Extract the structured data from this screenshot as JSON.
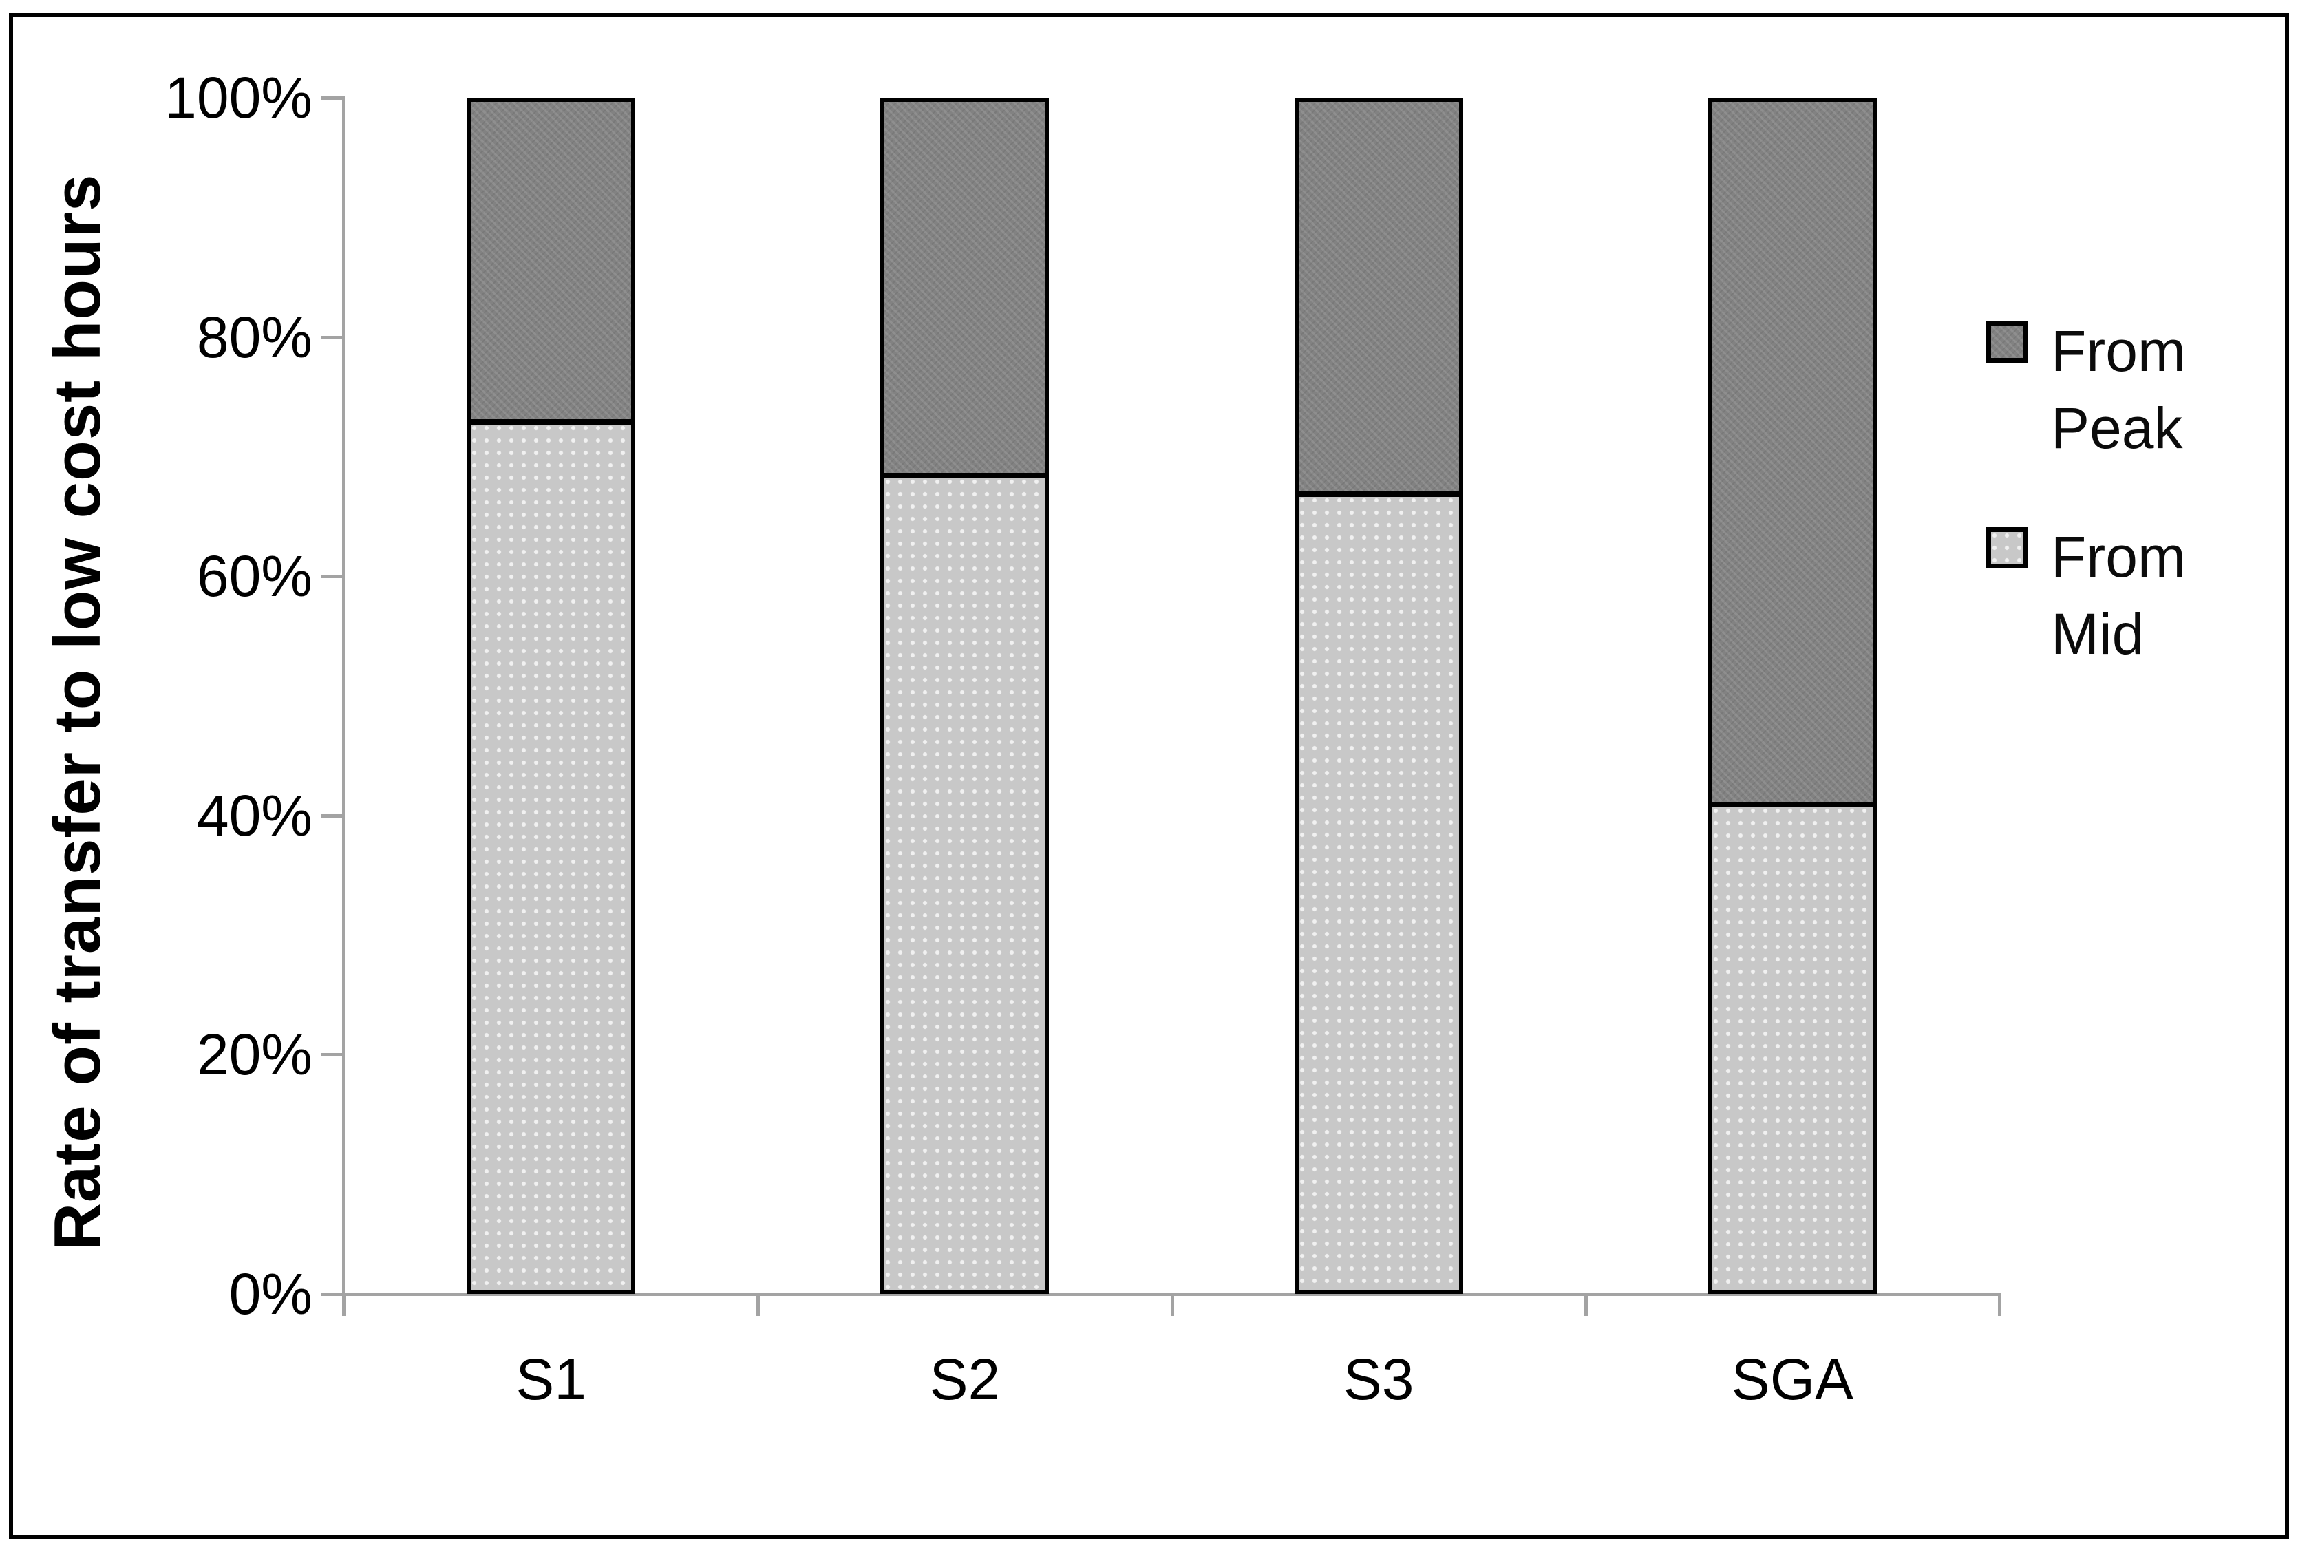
{
  "figure": {
    "background_color": "#ffffff",
    "border_color": "#000000"
  },
  "chart_data": {
    "type": "bar",
    "stacked": true,
    "percent_stacked": true,
    "title": "",
    "xlabel": "",
    "ylabel": "Rate of transfer to low cost hours",
    "categories": [
      "S1",
      "S2",
      "S3",
      "SGA"
    ],
    "series": [
      {
        "name": "From Mid",
        "color": "#c8c8c8",
        "values": [
          73,
          68.5,
          67,
          41
        ]
      },
      {
        "name": "From Peak",
        "color": "#828282",
        "values": [
          27,
          31.5,
          33,
          59
        ]
      }
    ],
    "ylim": [
      0,
      100
    ],
    "ytick_labels": [
      "0%",
      "20%",
      "40%",
      "60%",
      "80%",
      "100%"
    ],
    "ytick_values": [
      0,
      20,
      40,
      60,
      80,
      100
    ],
    "grid": false,
    "legend_position": "right",
    "axis_color": "#a3a3a3",
    "bar_border_color": "#000000",
    "text_color": "#000000"
  },
  "legend": {
    "items": [
      {
        "label": "From Peak",
        "series_key": "peak",
        "color": "#828282"
      },
      {
        "label": "From Mid",
        "series_key": "mid",
        "color": "#c8c8c8"
      }
    ]
  }
}
